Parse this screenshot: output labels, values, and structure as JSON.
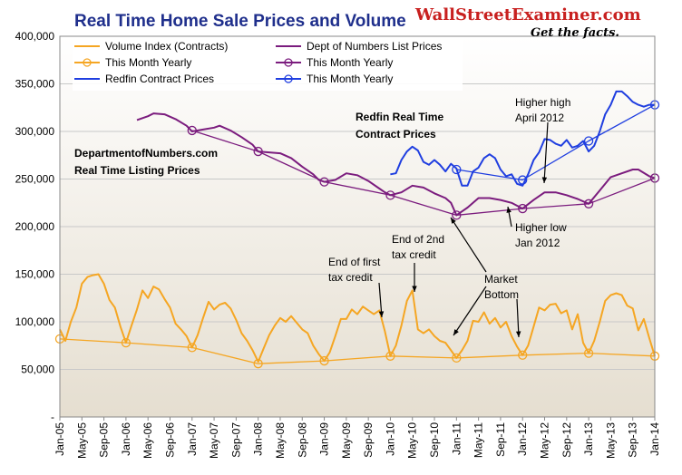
{
  "chart_data": {
    "type": "line",
    "title": "Real Time Home Sale Prices and Volume",
    "brand": {
      "name": "WallStreetExaminer.com",
      "tagline": "Get the facts."
    },
    "y_axis": {
      "ylim": [
        0,
        400000
      ],
      "ticks": [
        "-",
        "50,000",
        "100,000",
        "150,000",
        "200,000",
        "250,000",
        "300,000",
        "350,000",
        "400,000"
      ],
      "tick_values": [
        0,
        50000,
        100000,
        150000,
        200000,
        250000,
        300000,
        350000,
        400000
      ]
    },
    "x_axis": {
      "range": [
        "2005-01",
        "2014-01"
      ],
      "ticks": [
        "Jan-05",
        "May-05",
        "Sep-05",
        "Jan-06",
        "May-06",
        "Sep-06",
        "Jan-07",
        "May-07",
        "Sep-07",
        "Jan-08",
        "May-08",
        "Sep-08",
        "Jan-09",
        "May-09",
        "Sep-09",
        "Jan-10",
        "May-10",
        "Sep-10",
        "Jan-11",
        "May-11",
        "Sep-11",
        "Jan-12",
        "May-12",
        "Sep-12",
        "Jan-13",
        "May-13",
        "Sep-13",
        "Jan-14"
      ]
    },
    "grid": "horizontal",
    "series": [
      {
        "name": "Volume Index (Contracts)",
        "color": "#f5a623",
        "marker": "none",
        "points": [
          [
            "2005-01",
            92000
          ],
          [
            "2005-02",
            80000
          ],
          [
            "2005-03",
            100000
          ],
          [
            "2005-04",
            115000
          ],
          [
            "2005-05",
            140000
          ],
          [
            "2005-06",
            147000
          ],
          [
            "2005-07",
            149000
          ],
          [
            "2005-08",
            150000
          ],
          [
            "2005-09",
            140000
          ],
          [
            "2005-10",
            123000
          ],
          [
            "2005-11",
            115000
          ],
          [
            "2005-12",
            95000
          ],
          [
            "2006-01",
            78000
          ],
          [
            "2006-02",
            96000
          ],
          [
            "2006-03",
            113000
          ],
          [
            "2006-04",
            133000
          ],
          [
            "2006-05",
            125000
          ],
          [
            "2006-06",
            137000
          ],
          [
            "2006-07",
            134000
          ],
          [
            "2006-08",
            124000
          ],
          [
            "2006-09",
            115000
          ],
          [
            "2006-10",
            98000
          ],
          [
            "2006-11",
            92000
          ],
          [
            "2006-12",
            85000
          ],
          [
            "2007-01",
            73000
          ],
          [
            "2007-02",
            86000
          ],
          [
            "2007-03",
            104000
          ],
          [
            "2007-04",
            121000
          ],
          [
            "2007-05",
            113000
          ],
          [
            "2007-06",
            118000
          ],
          [
            "2007-07",
            120000
          ],
          [
            "2007-08",
            114000
          ],
          [
            "2007-09",
            102000
          ],
          [
            "2007-10",
            88000
          ],
          [
            "2007-11",
            80000
          ],
          [
            "2007-12",
            70000
          ],
          [
            "2008-01",
            58000
          ],
          [
            "2008-02",
            72000
          ],
          [
            "2008-03",
            86000
          ],
          [
            "2008-04",
            96000
          ],
          [
            "2008-05",
            104000
          ],
          [
            "2008-06",
            100000
          ],
          [
            "2008-07",
            106000
          ],
          [
            "2008-08",
            99000
          ],
          [
            "2008-09",
            92000
          ],
          [
            "2008-10",
            88000
          ],
          [
            "2008-11",
            75000
          ],
          [
            "2008-12",
            66000
          ],
          [
            "2009-01",
            59000
          ],
          [
            "2009-02",
            68000
          ],
          [
            "2009-03",
            85000
          ],
          [
            "2009-04",
            103000
          ],
          [
            "2009-05",
            103000
          ],
          [
            "2009-06",
            113000
          ],
          [
            "2009-07",
            108000
          ],
          [
            "2009-08",
            116000
          ],
          [
            "2009-09",
            112000
          ],
          [
            "2009-10",
            108000
          ],
          [
            "2009-11",
            112000
          ],
          [
            "2009-12",
            90000
          ],
          [
            "2010-01",
            64000
          ],
          [
            "2010-02",
            75000
          ],
          [
            "2010-03",
            96000
          ],
          [
            "2010-04",
            122000
          ],
          [
            "2010-05",
            133000
          ],
          [
            "2010-06",
            92000
          ],
          [
            "2010-07",
            88000
          ],
          [
            "2010-08",
            92000
          ],
          [
            "2010-09",
            85000
          ],
          [
            "2010-10",
            80000
          ],
          [
            "2010-11",
            78000
          ],
          [
            "2010-12",
            70000
          ],
          [
            "2011-01",
            62000
          ],
          [
            "2011-02",
            70000
          ],
          [
            "2011-03",
            80000
          ],
          [
            "2011-04",
            101000
          ],
          [
            "2011-05",
            100000
          ],
          [
            "2011-06",
            110000
          ],
          [
            "2011-07",
            98000
          ],
          [
            "2011-08",
            104000
          ],
          [
            "2011-09",
            94000
          ],
          [
            "2011-10",
            100000
          ],
          [
            "2011-11",
            85000
          ],
          [
            "2011-12",
            74000
          ],
          [
            "2012-01",
            65000
          ],
          [
            "2012-02",
            75000
          ],
          [
            "2012-03",
            95000
          ],
          [
            "2012-04",
            115000
          ],
          [
            "2012-05",
            112000
          ],
          [
            "2012-06",
            118000
          ],
          [
            "2012-07",
            119000
          ],
          [
            "2012-08",
            109000
          ],
          [
            "2012-09",
            112000
          ],
          [
            "2012-10",
            92000
          ],
          [
            "2012-11",
            108000
          ],
          [
            "2012-12",
            78000
          ],
          [
            "2013-01",
            67000
          ],
          [
            "2013-02",
            80000
          ],
          [
            "2013-03",
            100000
          ],
          [
            "2013-04",
            122000
          ],
          [
            "2013-05",
            128000
          ],
          [
            "2013-06",
            130000
          ],
          [
            "2013-07",
            128000
          ],
          [
            "2013-08",
            117000
          ],
          [
            "2013-09",
            114000
          ],
          [
            "2013-10",
            91000
          ],
          [
            "2013-11",
            103000
          ],
          [
            "2013-12",
            83000
          ],
          [
            "2014-01",
            64000
          ]
        ]
      },
      {
        "name": "This Month Yearly",
        "color": "#f5a623",
        "marker": "circle",
        "points": [
          [
            "2005-01",
            82000
          ],
          [
            "2006-01",
            78000
          ],
          [
            "2007-01",
            73000
          ],
          [
            "2008-01",
            56000
          ],
          [
            "2009-01",
            59000
          ],
          [
            "2010-01",
            64000
          ],
          [
            "2011-01",
            62000
          ],
          [
            "2012-01",
            65000
          ],
          [
            "2013-01",
            67000
          ],
          [
            "2014-01",
            64000
          ]
        ]
      },
      {
        "name": "Dept of Numbers List Prices",
        "color": "#7b1c7e",
        "marker": "none",
        "points": [
          [
            "2006-03",
            312000
          ],
          [
            "2006-05",
            316000
          ],
          [
            "2006-06",
            319000
          ],
          [
            "2006-08",
            318000
          ],
          [
            "2006-10",
            313000
          ],
          [
            "2006-12",
            306000
          ],
          [
            "2007-01",
            300000
          ],
          [
            "2007-03",
            302000
          ],
          [
            "2007-05",
            304000
          ],
          [
            "2007-06",
            306000
          ],
          [
            "2007-08",
            301000
          ],
          [
            "2007-10",
            294000
          ],
          [
            "2007-12",
            286000
          ],
          [
            "2008-01",
            279000
          ],
          [
            "2008-03",
            278000
          ],
          [
            "2008-05",
            277000
          ],
          [
            "2008-07",
            272000
          ],
          [
            "2008-09",
            263000
          ],
          [
            "2008-11",
            255000
          ],
          [
            "2008-12",
            249000
          ],
          [
            "2009-01",
            247000
          ],
          [
            "2009-03",
            249000
          ],
          [
            "2009-05",
            256000
          ],
          [
            "2009-07",
            254000
          ],
          [
            "2009-09",
            248000
          ],
          [
            "2009-11",
            240000
          ],
          [
            "2009-12",
            236000
          ],
          [
            "2010-01",
            233000
          ],
          [
            "2010-03",
            236000
          ],
          [
            "2010-05",
            243000
          ],
          [
            "2010-07",
            241000
          ],
          [
            "2010-09",
            235000
          ],
          [
            "2010-11",
            230000
          ],
          [
            "2010-12",
            225000
          ],
          [
            "2011-01",
            212000
          ],
          [
            "2011-03",
            220000
          ],
          [
            "2011-05",
            230000
          ],
          [
            "2011-07",
            230000
          ],
          [
            "2011-09",
            228000
          ],
          [
            "2011-11",
            225000
          ],
          [
            "2012-01",
            219000
          ],
          [
            "2012-03",
            228000
          ],
          [
            "2012-05",
            236000
          ],
          [
            "2012-07",
            236000
          ],
          [
            "2012-09",
            233000
          ],
          [
            "2012-11",
            229000
          ],
          [
            "2013-01",
            224000
          ],
          [
            "2013-03",
            238000
          ],
          [
            "2013-05",
            252000
          ],
          [
            "2013-07",
            256000
          ],
          [
            "2013-09",
            260000
          ],
          [
            "2013-10",
            260000
          ],
          [
            "2013-12",
            253000
          ],
          [
            "2014-01",
            251000
          ]
        ]
      },
      {
        "name": "This Month Yearly",
        "color": "#7b1c7e",
        "marker": "circle",
        "points": [
          [
            "2007-01",
            301000
          ],
          [
            "2008-01",
            279000
          ],
          [
            "2009-01",
            247000
          ],
          [
            "2010-01",
            233000
          ],
          [
            "2011-01",
            212000
          ],
          [
            "2012-01",
            219000
          ],
          [
            "2013-01",
            224000
          ],
          [
            "2014-01",
            251000
          ]
        ]
      },
      {
        "name": "Redfin Contract Prices",
        "color": "#1f3ee0",
        "marker": "none",
        "points": [
          [
            "2010-01",
            255000
          ],
          [
            "2010-02",
            256000
          ],
          [
            "2010-03",
            270000
          ],
          [
            "2010-04",
            279000
          ],
          [
            "2010-05",
            284000
          ],
          [
            "2010-06",
            280000
          ],
          [
            "2010-07",
            268000
          ],
          [
            "2010-08",
            265000
          ],
          [
            "2010-09",
            270000
          ],
          [
            "2010-10",
            265000
          ],
          [
            "2010-11",
            258000
          ],
          [
            "2010-12",
            266000
          ],
          [
            "2011-01",
            261000
          ],
          [
            "2011-02",
            243000
          ],
          [
            "2011-03",
            243000
          ],
          [
            "2011-04",
            258000
          ],
          [
            "2011-05",
            262000
          ],
          [
            "2011-06",
            272000
          ],
          [
            "2011-07",
            276000
          ],
          [
            "2011-08",
            272000
          ],
          [
            "2011-09",
            260000
          ],
          [
            "2011-10",
            253000
          ],
          [
            "2011-11",
            255000
          ],
          [
            "2011-12",
            245000
          ],
          [
            "2012-01",
            243000
          ],
          [
            "2012-02",
            255000
          ],
          [
            "2012-03",
            270000
          ],
          [
            "2012-04",
            278000
          ],
          [
            "2012-05",
            292000
          ],
          [
            "2012-06",
            291000
          ],
          [
            "2012-07",
            287000
          ],
          [
            "2012-08",
            285000
          ],
          [
            "2012-09",
            291000
          ],
          [
            "2012-10",
            283000
          ],
          [
            "2012-11",
            285000
          ],
          [
            "2012-12",
            290000
          ],
          [
            "2013-01",
            279000
          ],
          [
            "2013-02",
            285000
          ],
          [
            "2013-03",
            300000
          ],
          [
            "2013-04",
            318000
          ],
          [
            "2013-05",
            328000
          ],
          [
            "2013-06",
            342000
          ],
          [
            "2013-07",
            342000
          ],
          [
            "2013-08",
            337000
          ],
          [
            "2013-09",
            331000
          ],
          [
            "2013-10",
            328000
          ],
          [
            "2013-11",
            326000
          ],
          [
            "2013-12",
            328000
          ],
          [
            "2014-01",
            328000
          ]
        ]
      },
      {
        "name": "This Month Yearly",
        "color": "#1f3ee0",
        "marker": "circle",
        "points": [
          [
            "2011-01",
            260000
          ],
          [
            "2012-01",
            249000
          ],
          [
            "2013-01",
            290000
          ],
          [
            "2014-01",
            328000
          ]
        ]
      }
    ],
    "legend": {
      "placement": "top-left",
      "entries": [
        "Volume Index (Contracts)",
        "Dept of Numbers List Prices",
        "This Month Yearly",
        "This Month Yearly",
        "Redfin Contract Prices",
        "This Month Yearly"
      ]
    },
    "annotations": [
      {
        "id": "redfin_label",
        "lines": [
          "Redfin Real Time",
          "Contract Prices"
        ],
        "color": "#1f3ee0",
        "bold": true
      },
      {
        "id": "don_label",
        "lines": [
          "DepartmentofNumbers.com",
          "Real Time Listing Prices"
        ],
        "color": "#7b1c7e",
        "bold": true
      },
      {
        "id": "higher_high",
        "lines": [
          "Higher high",
          "April 2012"
        ]
      },
      {
        "id": "higher_low",
        "lines": [
          "Higher low",
          "Jan 2012"
        ]
      },
      {
        "id": "first_credit",
        "lines": [
          "End of first",
          "tax credit"
        ]
      },
      {
        "id": "second_credit",
        "lines": [
          "End of 2nd",
          "tax credit"
        ]
      },
      {
        "id": "market_bottom",
        "lines": [
          "Market",
          "Bottom"
        ]
      }
    ]
  }
}
